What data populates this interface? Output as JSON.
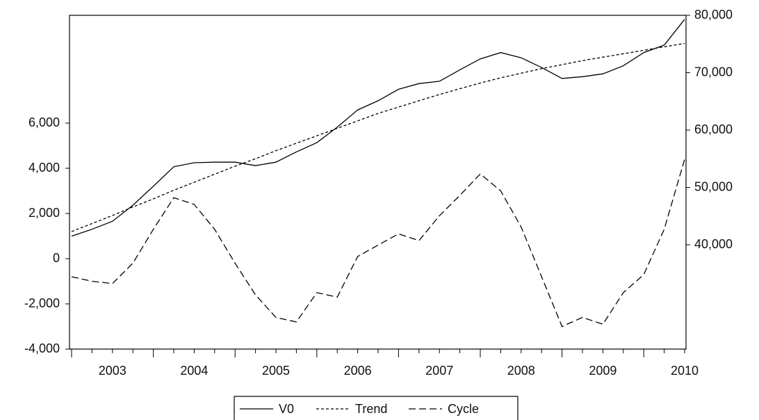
{
  "chart_data": {
    "type": "line",
    "categories": [
      null,
      null,
      "2003",
      null,
      null,
      null,
      "2004",
      null,
      null,
      null,
      "2005",
      null,
      null,
      null,
      "2006",
      null,
      null,
      null,
      "2007",
      null,
      null,
      null,
      "2008",
      null,
      null,
      null,
      "2009",
      null,
      null,
      null,
      "2010"
    ],
    "series": [
      {
        "name": "V0",
        "color": "#000000",
        "line_style": "solid",
        "axis": "y2",
        "values": [
          41500,
          42700,
          44100,
          46900,
          50200,
          53600,
          54300,
          54400,
          54400,
          53800,
          54400,
          56200,
          57800,
          60500,
          63500,
          65100,
          67100,
          68100,
          68500,
          70500,
          72400,
          73500,
          72600,
          70900,
          69000,
          69300,
          69800,
          71200,
          73500,
          74800,
          79300
        ]
      },
      {
        "name": "Trend",
        "color": "#000000",
        "line_style": "short-dash",
        "axis": "y2",
        "values": [
          42300,
          43700,
          45100,
          46600,
          48000,
          49500,
          50900,
          52300,
          53700,
          55000,
          56400,
          57700,
          59000,
          60300,
          61600,
          62900,
          64000,
          65100,
          66200,
          67200,
          68200,
          69100,
          69900,
          70700,
          71400,
          72100,
          72700,
          73300,
          73900,
          74500,
          75100
        ]
      },
      {
        "name": "Cycle",
        "color": "#000000",
        "line_style": "long-dash",
        "values": [
          -800,
          -1000,
          -1100,
          -200,
          1300,
          2700,
          2400,
          1300,
          -200,
          -1600,
          -2600,
          -2800,
          -1500,
          -1700,
          100,
          600,
          1100,
          800,
          1900,
          2800,
          3750,
          3000,
          1400,
          -800,
          -3000,
          -2600,
          -2900,
          -1500,
          -700,
          1300,
          4400
        ]
      }
    ],
    "ylim": [
      -4000,
      10770
    ],
    "yticks": [
      {
        "value": -4000,
        "label": "-4,000"
      },
      {
        "value": -2000,
        "label": "-2,000"
      },
      0,
      {
        "value": 2000,
        "label": "2,000"
      },
      {
        "value": 4000,
        "label": "4,000"
      },
      {
        "value": 6000,
        "label": "6,000"
      }
    ],
    "y2lim": [
      21820,
      80000
    ],
    "y2ticks": [
      {
        "value": 40000,
        "label": "40,000"
      },
      {
        "value": 50000,
        "label": "50,000"
      },
      {
        "value": 60000,
        "label": "60,000"
      },
      {
        "value": 70000,
        "label": "70,000"
      },
      {
        "value": 80000,
        "label": "80,000"
      }
    ],
    "grid": false,
    "legend": "bottom"
  }
}
